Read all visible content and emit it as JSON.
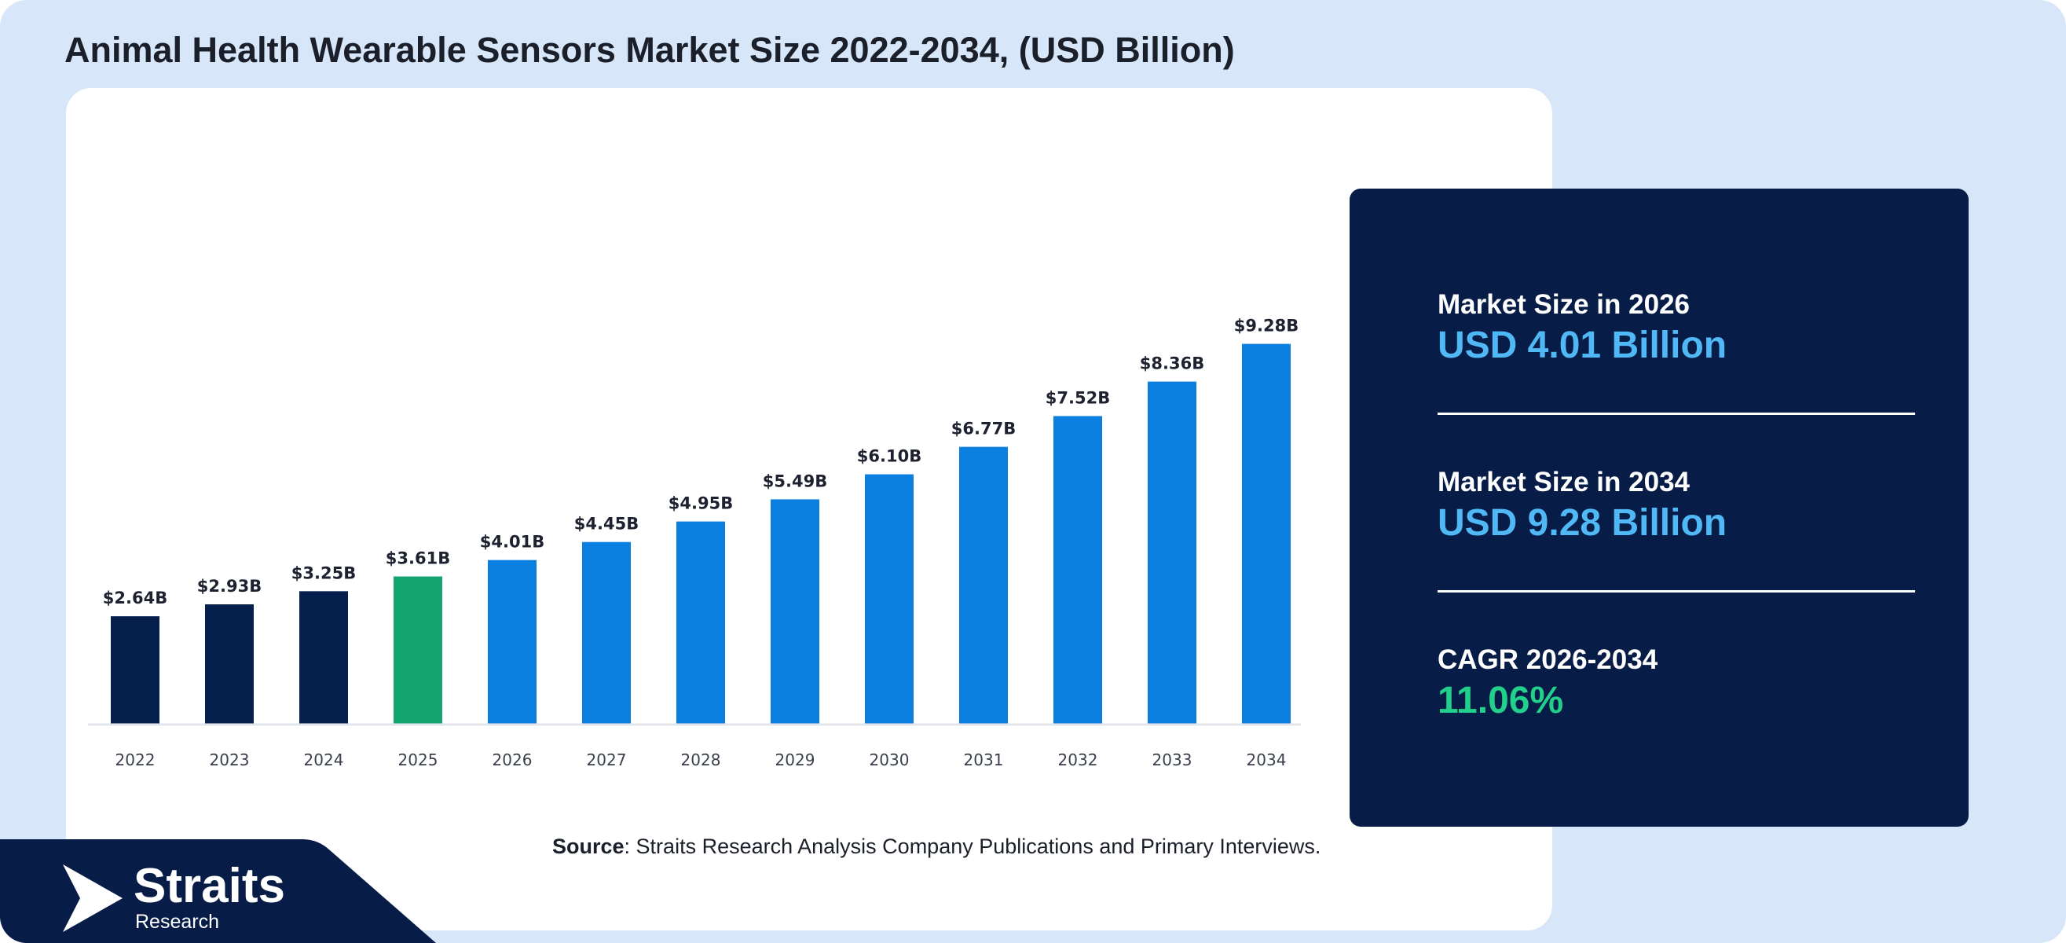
{
  "title": "Animal Health Wearable Sensors Market Size 2022-2034, (USD Billion)",
  "colors": {
    "historical": "#06204d",
    "base_year": "#13a56f",
    "forecast": "#0b7fe0",
    "stat_value": "#4fb8f5",
    "cagr_value": "#22d08b",
    "panel": "#071d47",
    "background": "#d7e6f8"
  },
  "chart_data": {
    "type": "bar",
    "categories": [
      "2022",
      "2023",
      "2024",
      "2025",
      "2026",
      "2027",
      "2028",
      "2029",
      "2030",
      "2031",
      "2032",
      "2033",
      "2034"
    ],
    "values": [
      2.64,
      2.93,
      3.25,
      3.61,
      4.01,
      4.45,
      4.95,
      5.49,
      6.1,
      6.77,
      7.52,
      8.36,
      9.28
    ],
    "data_labels": [
      "$2.64B",
      "$2.93B",
      "$3.25B",
      "$3.61B",
      "$4.01B",
      "$4.45B",
      "$4.95B",
      "$5.49B",
      "$6.10B",
      "$6.77B",
      "$7.52B",
      "$8.36B",
      "$9.28B"
    ],
    "bar_kind": [
      "historical",
      "historical",
      "historical",
      "base_year",
      "forecast",
      "forecast",
      "forecast",
      "forecast",
      "forecast",
      "forecast",
      "forecast",
      "forecast",
      "forecast"
    ],
    "title": "Animal Health Wearable Sensors Market Size 2022-2034, (USD Billion)",
    "xlabel": "",
    "ylabel": "",
    "ylim": [
      0,
      10
    ],
    "grid": false,
    "legend": "none"
  },
  "source": {
    "label": "Source",
    "text": ": Straits Research Analysis Company Publications and Primary Interviews."
  },
  "stats": {
    "size_2026": {
      "label": "Market Size in 2026",
      "value": "USD 4.01 Billion"
    },
    "size_2034": {
      "label": "Market Size in 2034",
      "value": "USD 9.28 Billion"
    },
    "cagr": {
      "label": "CAGR 2026-2034",
      "value": "11.06%"
    }
  },
  "brand": {
    "name": "Straits",
    "sub": "Research",
    "icon": "straits-logo-icon"
  }
}
